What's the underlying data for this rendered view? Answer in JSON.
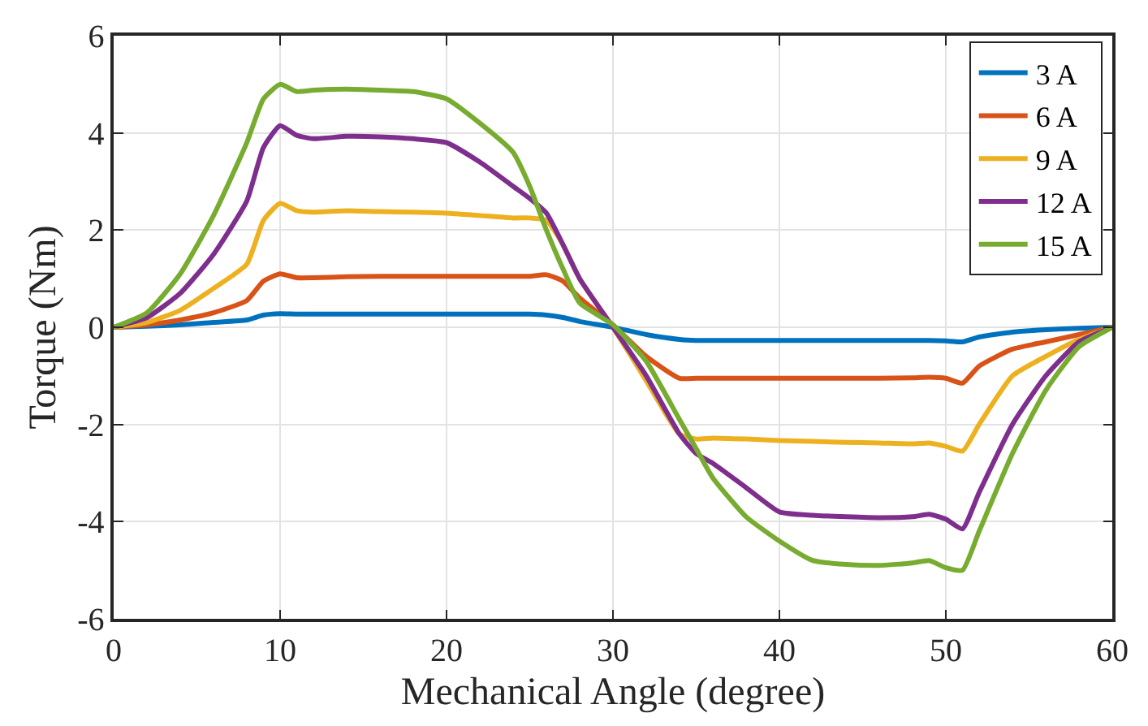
{
  "chart_data": {
    "type": "line",
    "xlabel": "Mechanical Angle (degree)",
    "ylabel": "Torque (Nm)",
    "x": [
      0,
      2,
      4,
      6,
      8,
      9,
      10,
      11,
      12,
      14,
      16,
      18,
      20,
      22,
      24,
      25,
      26,
      27,
      28,
      30,
      32,
      34,
      35,
      36,
      38,
      40,
      42,
      44,
      46,
      48,
      49,
      50,
      51,
      52,
      54,
      56,
      58,
      60
    ],
    "series": [
      {
        "name": "3 A",
        "color": "#0072bd",
        "values": [
          0,
          0.02,
          0.05,
          0.1,
          0.15,
          0.25,
          0.28,
          0.27,
          0.27,
          0.27,
          0.27,
          0.27,
          0.27,
          0.27,
          0.27,
          0.27,
          0.25,
          0.2,
          0.12,
          0,
          -0.15,
          -0.25,
          -0.27,
          -0.27,
          -0.27,
          -0.27,
          -0.27,
          -0.27,
          -0.27,
          -0.27,
          -0.27,
          -0.28,
          -0.3,
          -0.2,
          -0.1,
          -0.05,
          -0.02,
          0
        ]
      },
      {
        "name": "6 A",
        "color": "#d95319",
        "values": [
          0,
          0.05,
          0.15,
          0.3,
          0.55,
          0.95,
          1.1,
          1.02,
          1.02,
          1.04,
          1.05,
          1.05,
          1.05,
          1.05,
          1.05,
          1.05,
          1.08,
          0.95,
          0.6,
          0.05,
          -0.6,
          -1.05,
          -1.05,
          -1.05,
          -1.05,
          -1.05,
          -1.05,
          -1.05,
          -1.05,
          -1.04,
          -1.03,
          -1.05,
          -1.15,
          -0.8,
          -0.45,
          -0.3,
          -0.15,
          0
        ]
      },
      {
        "name": "9 A",
        "color": "#edb120",
        "values": [
          0,
          0.1,
          0.35,
          0.8,
          1.3,
          2.2,
          2.55,
          2.4,
          2.37,
          2.4,
          2.38,
          2.37,
          2.35,
          2.3,
          2.25,
          2.25,
          2.2,
          1.7,
          1,
          0,
          -1.1,
          -2.2,
          -2.3,
          -2.28,
          -2.3,
          -2.33,
          -2.35,
          -2.37,
          -2.38,
          -2.4,
          -2.38,
          -2.45,
          -2.55,
          -2,
          -1,
          -0.6,
          -0.25,
          0
        ]
      },
      {
        "name": "12 A",
        "color": "#7e2f8e",
        "values": [
          0,
          0.2,
          0.7,
          1.5,
          2.6,
          3.7,
          4.15,
          3.95,
          3.88,
          3.93,
          3.92,
          3.88,
          3.8,
          3.4,
          2.9,
          2.65,
          2.35,
          1.7,
          1,
          0,
          -1,
          -2.2,
          -2.6,
          -2.8,
          -3.3,
          -3.8,
          -3.87,
          -3.9,
          -3.92,
          -3.9,
          -3.85,
          -3.95,
          -4.15,
          -3.4,
          -2,
          -1,
          -0.3,
          0
        ]
      },
      {
        "name": "15 A",
        "color": "#77ac30",
        "values": [
          0,
          0.3,
          1.1,
          2.3,
          3.8,
          4.7,
          5,
          4.85,
          4.88,
          4.9,
          4.88,
          4.85,
          4.7,
          4.2,
          3.6,
          2.9,
          2,
          1.2,
          0.5,
          0.05,
          -0.7,
          -1.9,
          -2.5,
          -3.1,
          -3.9,
          -4.4,
          -4.8,
          -4.88,
          -4.9,
          -4.85,
          -4.8,
          -4.95,
          -5,
          -4.2,
          -2.6,
          -1.3,
          -0.4,
          0
        ]
      }
    ],
    "xlim": [
      0,
      60
    ],
    "xticks": [
      0,
      10,
      20,
      30,
      40,
      50,
      60
    ],
    "ylim": [
      -6,
      6
    ],
    "yticks": [
      -6,
      -4,
      -2,
      0,
      2,
      4,
      6
    ],
    "grid": true,
    "legend": "top right",
    "marker": "none",
    "line_style": "solid"
  }
}
